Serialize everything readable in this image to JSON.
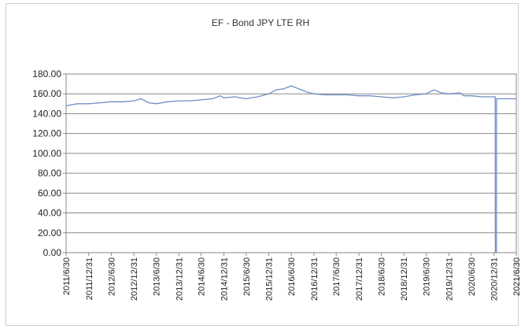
{
  "chart_data": {
    "type": "line",
    "title": "EF - Bond JPY LTE RH",
    "xlabel": "",
    "ylabel": "",
    "ylim": [
      0,
      180
    ],
    "yticks": [
      "0.00",
      "20.00",
      "40.00",
      "60.00",
      "80.00",
      "100.00",
      "120.00",
      "140.00",
      "160.00",
      "180.00"
    ],
    "x_range": [
      "2011/6/30",
      "2021/6/30"
    ],
    "xticks": [
      "2011/6/30",
      "2011/12/31",
      "2012/6/30",
      "2012/12/31",
      "2013/6/30",
      "2013/12/31",
      "2014/6/30",
      "2014/12/31",
      "2015/6/30",
      "2015/12/31",
      "2016/6/30",
      "2016/12/31",
      "2017/6/30",
      "2017/12/31",
      "2018/6/30",
      "2018/12/31",
      "2019/6/30",
      "2019/12/31",
      "2020/6/30",
      "2020/12/31",
      "2021/6/30"
    ],
    "grid": true,
    "legend": "none",
    "series": [
      {
        "color": "#6f8fc6",
        "points": [
          [
            "2011/6/30",
            148
          ],
          [
            "2011/9/30",
            150
          ],
          [
            "2011/12/31",
            150
          ],
          [
            "2012/3/31",
            151
          ],
          [
            "2012/6/30",
            152
          ],
          [
            "2012/9/30",
            152
          ],
          [
            "2012/12/31",
            153
          ],
          [
            "2013/2/28",
            155
          ],
          [
            "2013/4/30",
            151
          ],
          [
            "2013/6/30",
            150
          ],
          [
            "2013/9/30",
            152
          ],
          [
            "2013/12/31",
            153
          ],
          [
            "2014/3/31",
            153
          ],
          [
            "2014/6/30",
            154
          ],
          [
            "2014/9/30",
            155
          ],
          [
            "2014/11/30",
            158
          ],
          [
            "2014/12/31",
            156
          ],
          [
            "2015/3/31",
            157
          ],
          [
            "2015/6/30",
            155
          ],
          [
            "2015/9/30",
            157
          ],
          [
            "2015/12/31",
            160
          ],
          [
            "2016/2/28",
            164
          ],
          [
            "2016/4/30",
            165
          ],
          [
            "2016/6/30",
            168
          ],
          [
            "2016/8/31",
            165
          ],
          [
            "2016/10/31",
            162
          ],
          [
            "2016/12/31",
            160
          ],
          [
            "2017/3/31",
            159
          ],
          [
            "2017/6/30",
            159
          ],
          [
            "2017/9/30",
            159
          ],
          [
            "2017/12/31",
            158
          ],
          [
            "2018/3/31",
            158
          ],
          [
            "2018/6/30",
            157
          ],
          [
            "2018/9/30",
            156
          ],
          [
            "2018/12/31",
            157
          ],
          [
            "2019/3/31",
            159
          ],
          [
            "2019/6/30",
            160
          ],
          [
            "2019/8/31",
            164
          ],
          [
            "2019/10/31",
            161
          ],
          [
            "2019/12/31",
            160
          ],
          [
            "2020/3/31",
            161
          ],
          [
            "2020/4/30",
            158
          ],
          [
            "2020/6/30",
            158
          ],
          [
            "2020/9/30",
            157
          ],
          [
            "2020/12/31",
            157
          ],
          [
            "2021/1/10",
            157
          ],
          [
            "2021/1/11",
            0
          ],
          [
            "2021/1/20",
            0
          ],
          [
            "2021/1/21",
            155
          ],
          [
            "2021/3/31",
            155
          ],
          [
            "2021/6/30",
            155
          ]
        ]
      }
    ]
  }
}
